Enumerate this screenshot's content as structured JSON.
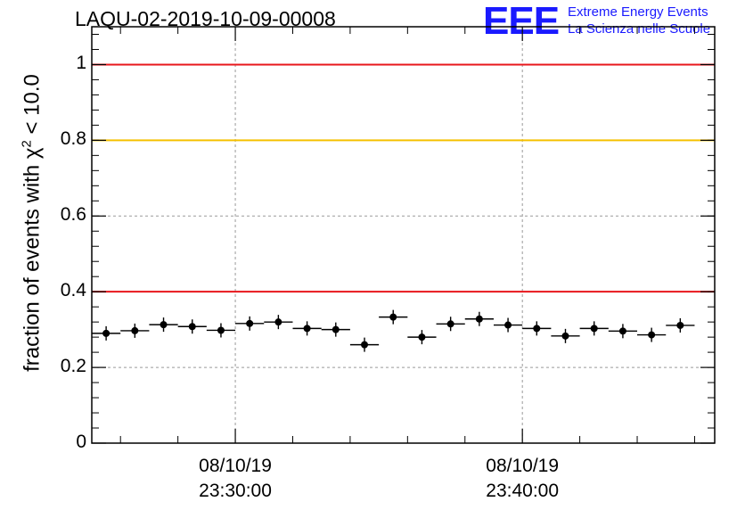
{
  "header": {
    "title": "LAQU-02-2019-10-09-00008",
    "logo_mark": "EEE",
    "logo_line1": "Extreme Energy Events",
    "logo_line2": "La Scienza nelle Scuole"
  },
  "chart_data": {
    "type": "scatter",
    "title": "LAQU-02-2019-10-09-00008",
    "xlabel": "",
    "ylabel": "fraction of events with χ² < 10.0",
    "ylabel_main": "fraction of events with χ",
    "ylabel_sup": "2",
    "ylabel_tail": " < 10.0",
    "ylim": [
      0,
      1.1
    ],
    "xlim_minutes": [
      -5.0,
      16.7
    ],
    "grid": true,
    "yticks": [
      {
        "value": 0,
        "label": "0"
      },
      {
        "value": 0.2,
        "label": "0.2"
      },
      {
        "value": 0.4,
        "label": "0.4"
      },
      {
        "value": 0.6,
        "label": "0.6"
      },
      {
        "value": 0.8,
        "label": "0.8"
      },
      {
        "value": 1.0,
        "label": "1"
      }
    ],
    "xticks": [
      {
        "minute": 0,
        "date": "08/10/19",
        "time": "23:30:00"
      },
      {
        "minute": 10,
        "date": "08/10/19",
        "time": "23:40:00"
      }
    ],
    "reference_lines": [
      {
        "y": 1.0,
        "color": "#e8161b"
      },
      {
        "y": 0.8,
        "color": "#f5c000"
      },
      {
        "y": 0.4,
        "color": "#e8161b"
      }
    ],
    "bin_width_minutes": 1.0,
    "x": [
      -4.5,
      -3.5,
      -2.5,
      -1.5,
      -0.5,
      0.5,
      1.5,
      2.5,
      3.5,
      4.5,
      5.5,
      6.5,
      7.5,
      8.5,
      9.5,
      10.5,
      11.5,
      12.5,
      13.5,
      14.5,
      15.5
    ],
    "values": [
      0.29,
      0.297,
      0.313,
      0.308,
      0.298,
      0.316,
      0.32,
      0.303,
      0.3,
      0.26,
      0.333,
      0.28,
      0.315,
      0.328,
      0.312,
      0.303,
      0.283,
      0.303,
      0.296,
      0.286,
      0.311
    ]
  }
}
